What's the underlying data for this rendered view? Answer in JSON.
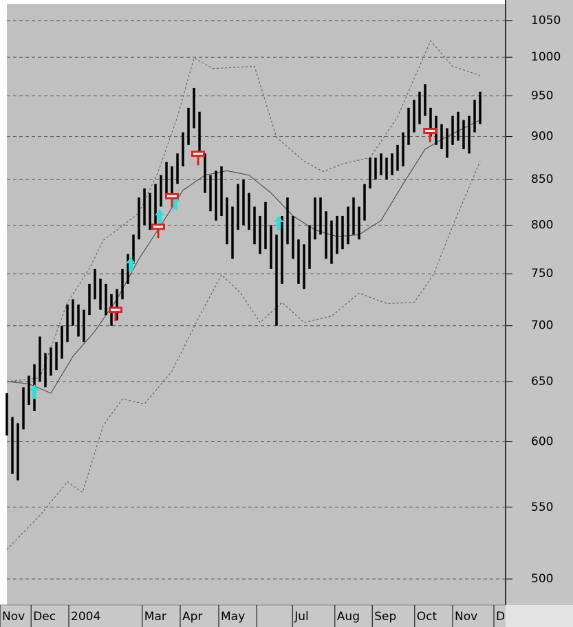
{
  "chart_data": {
    "type": "ohlc",
    "log_scale": true,
    "grid": true,
    "bar_color": "#000000",
    "x": [
      0,
      1,
      2,
      3,
      4,
      5,
      6,
      7,
      8,
      9,
      10,
      11,
      12,
      13,
      14,
      15,
      16,
      17,
      18,
      19,
      20,
      21,
      22,
      23,
      24,
      25,
      26,
      27,
      28,
      29,
      30,
      31,
      32,
      33,
      34,
      35,
      36,
      37,
      38,
      39,
      40,
      41,
      42,
      43,
      44,
      45,
      46,
      47,
      48,
      49,
      50,
      51,
      52,
      53,
      54,
      55,
      56,
      57,
      58,
      59,
      60,
      61,
      62,
      63,
      64,
      65,
      66,
      67,
      68,
      69,
      70,
      71,
      72,
      73,
      74,
      75,
      76,
      77,
      78,
      79,
      80,
      81,
      82,
      83,
      84,
      85,
      86
    ],
    "high": [
      640,
      620,
      615,
      645,
      655,
      665,
      690,
      675,
      680,
      685,
      700,
      720,
      725,
      720,
      715,
      740,
      755,
      745,
      740,
      730,
      735,
      755,
      770,
      790,
      830,
      840,
      835,
      845,
      855,
      870,
      865,
      880,
      905,
      935,
      960,
      930,
      880,
      855,
      860,
      865,
      830,
      820,
      845,
      850,
      835,
      820,
      810,
      825,
      800,
      790,
      810,
      830,
      810,
      785,
      780,
      800,
      830,
      830,
      815,
      805,
      810,
      810,
      820,
      830,
      820,
      845,
      875,
      875,
      880,
      875,
      880,
      890,
      905,
      935,
      945,
      955,
      965,
      935,
      925,
      915,
      910,
      925,
      930,
      920,
      925,
      945,
      955
    ],
    "low": [
      605,
      575,
      570,
      610,
      630,
      625,
      650,
      645,
      655,
      660,
      670,
      685,
      700,
      690,
      685,
      710,
      725,
      715,
      710,
      700,
      705,
      725,
      740,
      760,
      785,
      800,
      795,
      800,
      820,
      830,
      830,
      845,
      865,
      890,
      910,
      880,
      835,
      815,
      805,
      810,
      780,
      765,
      795,
      800,
      795,
      780,
      770,
      775,
      755,
      700,
      740,
      780,
      765,
      740,
      735,
      755,
      785,
      790,
      765,
      760,
      770,
      775,
      780,
      790,
      785,
      805,
      840,
      850,
      855,
      850,
      855,
      860,
      865,
      890,
      905,
      915,
      925,
      900,
      890,
      885,
      875,
      890,
      895,
      885,
      880,
      905,
      915
    ],
    "xlim": [
      -1.25,
      90.625
    ],
    "xticks": [
      {
        "value": -1.25,
        "label": "Nov"
      },
      {
        "value": 4.4,
        "label": "Dec"
      },
      {
        "value": 11.25,
        "label": "2004"
      },
      {
        "value": 24.6,
        "label": "Mar"
      },
      {
        "value": 31.5,
        "label": "Apr"
      },
      {
        "value": 38.5,
        "label": "May"
      },
      {
        "value": 45.4,
        "label": null
      },
      {
        "value": 51.9,
        "label": "Jul"
      },
      {
        "value": 59.6,
        "label": "Aug"
      },
      {
        "value": 66.4,
        "label": "Sep"
      },
      {
        "value": 74.1,
        "label": "Oct"
      },
      {
        "value": 81,
        "label": "Nov"
      },
      {
        "value": 88.5,
        "label": "D"
      }
    ],
    "ylim": [
      483,
      1079
    ],
    "yticks": [
      500,
      550,
      600,
      650,
      700,
      750,
      800,
      850,
      900,
      950,
      1000,
      1050
    ],
    "lines": [
      {
        "color": "#555555",
        "style": "solid",
        "x": [
          0,
          4,
          8,
          12,
          16,
          20,
          24,
          28,
          32,
          36,
          40,
          44,
          48,
          52,
          56,
          60,
          64,
          68,
          72,
          76,
          80,
          86
        ],
        "values": [
          650,
          648,
          640,
          672,
          695,
          725,
          765,
          800,
          838,
          855,
          860,
          855,
          835,
          810,
          795,
          788,
          790,
          805,
          845,
          885,
          900,
          920
        ]
      },
      {
        "color": "#666666",
        "style": "dashed",
        "x": [
          0,
          6,
          11,
          15,
          17.5,
          24,
          27.5,
          31,
          34,
          37.5,
          45,
          49,
          54,
          57.5,
          61,
          66,
          71,
          77,
          81,
          86
        ],
        "values": [
          650,
          653,
          722,
          755,
          784,
          813,
          859,
          924,
          999,
          985,
          988,
          899,
          871,
          859,
          868,
          875,
          924,
          1022,
          988,
          976
        ]
      },
      {
        "color": "#666666",
        "style": "dashed",
        "x": [
          0,
          6,
          11,
          13.75,
          17.5,
          21,
          25,
          30,
          35,
          39,
          42.5,
          46,
          50,
          54,
          59,
          64,
          69,
          74,
          77.5,
          81,
          86
        ],
        "values": [
          520,
          544,
          569,
          561,
          613,
          635,
          631,
          659,
          709,
          749,
          731,
          703,
          722,
          703,
          709,
          731,
          721,
          722,
          749,
          799,
          871
        ]
      }
    ],
    "buy_signals": {
      "color": "#33dddd",
      "x": [
        5,
        22.5,
        27.75,
        30.6,
        49.4
      ],
      "values": [
        641,
        759,
        809,
        824,
        802
      ]
    },
    "sell_signals": {
      "color": "#e02020",
      "x": [
        19.75,
        27.5,
        30,
        34.75,
        76.9
      ],
      "values": [
        712,
        795,
        828,
        876,
        903
      ]
    }
  }
}
